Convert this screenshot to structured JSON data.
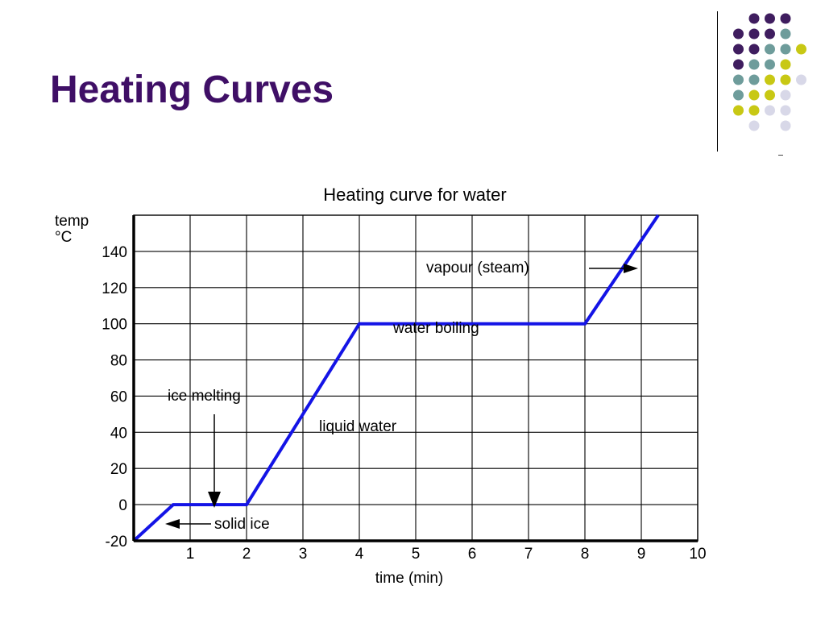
{
  "slide": {
    "title": "Heating Curves",
    "accent_color": "#3f0f66",
    "decoration_dot_colors": [
      "#3f1d5f",
      "#6e9c9b",
      "#c8c814",
      "#d8d8e8"
    ]
  },
  "chart_data": {
    "type": "line",
    "title": "Heating curve for water",
    "xlabel": "time (min)",
    "ylabel_line1": "temp",
    "ylabel_line2": "°C",
    "xlim": [
      0,
      10
    ],
    "ylim": [
      -20,
      160
    ],
    "x_ticks": [
      1,
      2,
      3,
      4,
      5,
      6,
      7,
      8,
      9,
      10
    ],
    "x_tick_labels": [
      "1",
      "2",
      "3",
      "4",
      "5",
      "6",
      "7",
      "8",
      "9",
      "10"
    ],
    "y_ticks": [
      -20,
      0,
      20,
      40,
      60,
      80,
      100,
      120,
      140
    ],
    "y_tick_labels": [
      "-20",
      "0",
      "20",
      "40",
      "60",
      "80",
      "100",
      "120",
      "140"
    ],
    "grid": true,
    "line_color": "#1414e6",
    "series": [
      {
        "points": [
          [
            0,
            -20
          ],
          [
            0.7,
            0
          ],
          [
            2,
            0
          ],
          [
            4,
            100
          ],
          [
            8,
            100
          ],
          [
            9.3,
            160
          ]
        ]
      }
    ],
    "annotations": {
      "ice_melting": "ice melting",
      "solid_ice": "solid ice",
      "liquid_water": "liquid water",
      "water_boiling": "water boiling",
      "vapour": "vapour (steam)"
    }
  }
}
